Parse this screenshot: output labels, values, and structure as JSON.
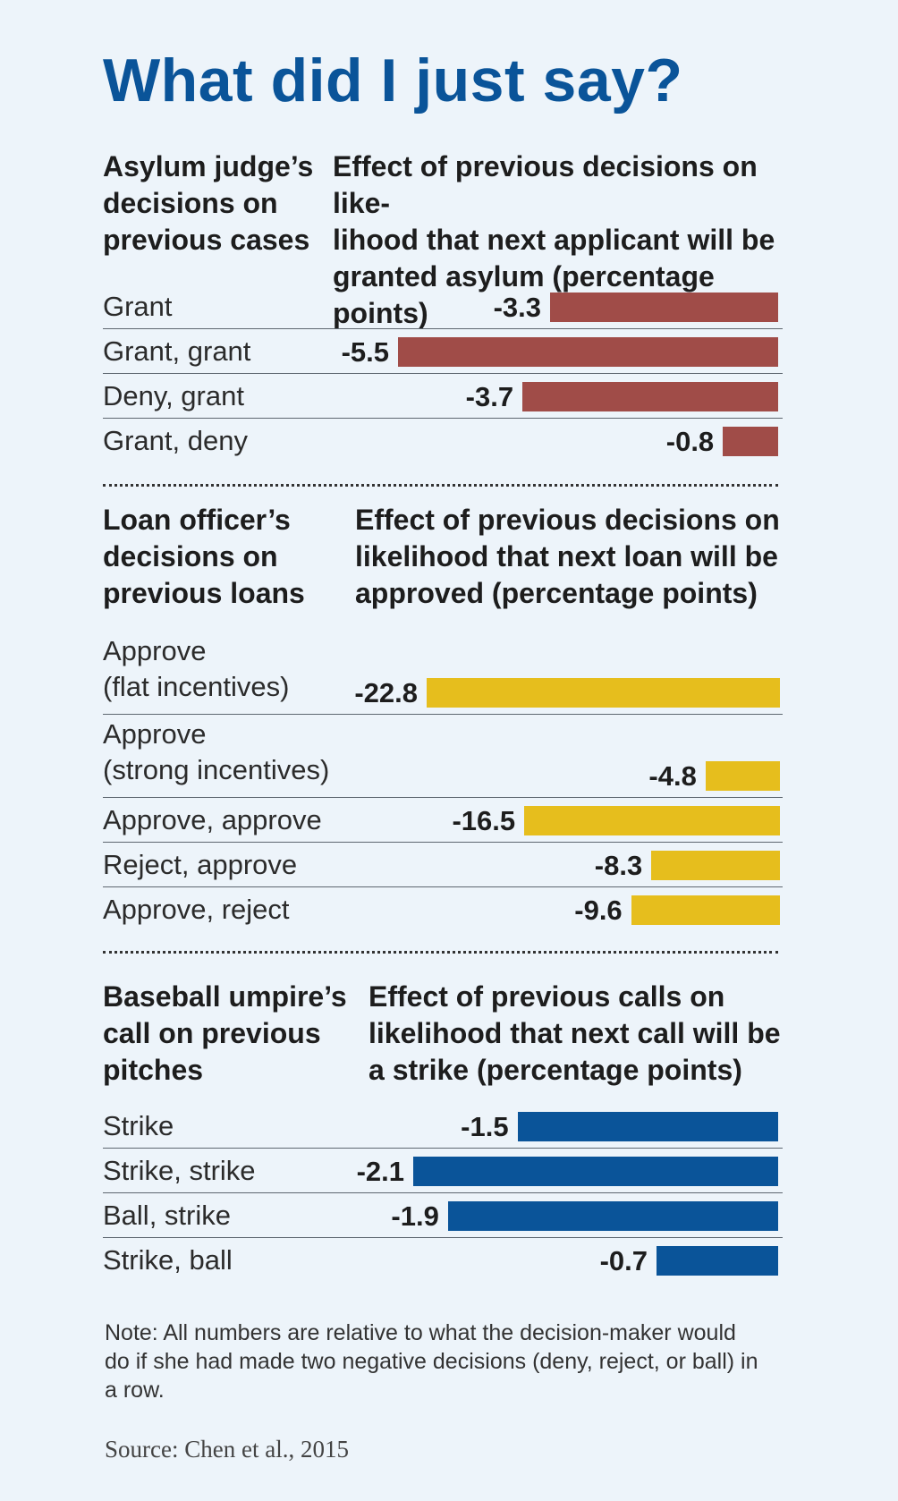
{
  "title": "What did I just say?",
  "colors": {
    "title": "#0a5499",
    "asylum_bar": "#a04c48",
    "loan_bar": "#e6be1d",
    "baseball_bar": "#0a5499"
  },
  "sections": [
    {
      "left_header": "Asylum judge’s\ndecisions on\nprevious cases",
      "right_header": "Effect of previous decisions on like-\nlihood that next applicant will be\ngranted asylum (percentage points)"
    },
    {
      "left_header": "Loan officer’s\ndecisions on\nprevious loans",
      "right_header": "Effect of previous decisions on\nlikelihood that next loan will be\napproved (percentage points)"
    },
    {
      "left_header": "Baseball umpire’s\ncall on previous\npitches",
      "right_header": "Effect of previous calls on\nlikelihood that next call will be\na strike (percentage points)"
    }
  ],
  "note": "Note: All numbers are relative to what the decision-maker would do if she had made two negative decisions (deny, reject, or ball) in a row.",
  "source": "Source: Chen et al., 2015",
  "chart_data": [
    {
      "type": "bar",
      "orientation": "horizontal",
      "categories": [
        "Grant",
        "Grant, grant",
        "Deny, grant",
        "Grant, deny"
      ],
      "values": [
        -3.3,
        -5.5,
        -3.7,
        -0.8
      ],
      "value_labels": [
        "-3.3",
        "-5.5",
        "-3.7",
        "-0.8"
      ],
      "color": "#a04c48"
    },
    {
      "type": "bar",
      "orientation": "horizontal",
      "categories": [
        "Approve\n(flat incentives)",
        "Approve\n(strong incentives)",
        "Approve, approve",
        "Reject, approve",
        "Approve, reject"
      ],
      "values": [
        -22.8,
        -4.8,
        -16.5,
        -8.3,
        -9.6
      ],
      "value_labels": [
        "-22.8",
        "-4.8",
        "-16.5",
        "-8.3",
        "-9.6"
      ],
      "color": "#e6be1d"
    },
    {
      "type": "bar",
      "orientation": "horizontal",
      "categories": [
        "Strike",
        "Strike, strike",
        "Ball, strike",
        "Strike, ball"
      ],
      "values": [
        -1.5,
        -2.1,
        -1.9,
        -0.7
      ],
      "value_labels": [
        "-1.5",
        "-2.1",
        "-1.9",
        "-0.7"
      ],
      "color": "#0a5499"
    }
  ]
}
